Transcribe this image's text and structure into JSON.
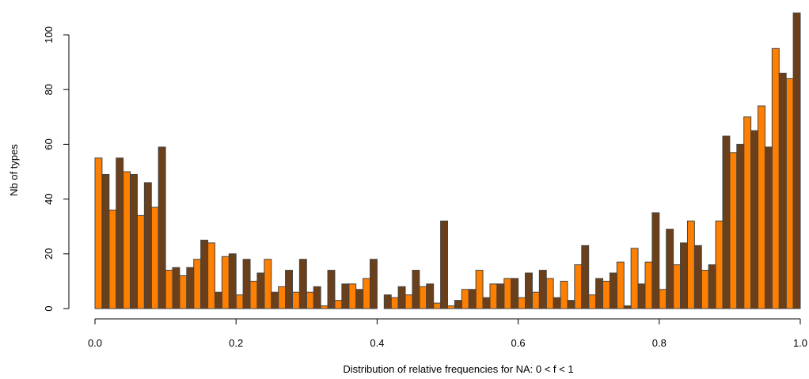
{
  "chart_data": {
    "type": "bar",
    "title": "",
    "xlabel": "Distribution of relative frequencies for NA: 0 < f < 1",
    "ylabel": "Nb of types",
    "xlim": [
      0,
      1
    ],
    "ylim": [
      0,
      108
    ],
    "x_ticks": [
      0.0,
      0.2,
      0.4,
      0.6,
      0.8,
      1.0
    ],
    "x_tick_labels": [
      "0.0",
      "0.2",
      "0.4",
      "0.6",
      "0.8",
      "1.0"
    ],
    "y_ticks": [
      0,
      20,
      40,
      60,
      80,
      100
    ],
    "y_tick_labels": [
      "0",
      "20",
      "40",
      "60",
      "80",
      "100"
    ],
    "grid": false,
    "colors": {
      "series_a": "#ff8000",
      "series_b": "#6b3f1a"
    },
    "bin_width": 0.02,
    "x": [
      0.0,
      0.02,
      0.04,
      0.06,
      0.08,
      0.1,
      0.12,
      0.14,
      0.16,
      0.18,
      0.2,
      0.22,
      0.24,
      0.26,
      0.28,
      0.3,
      0.32,
      0.34,
      0.36,
      0.38,
      0.4,
      0.42,
      0.44,
      0.46,
      0.48,
      0.5,
      0.52,
      0.54,
      0.56,
      0.58,
      0.6,
      0.62,
      0.64,
      0.66,
      0.68,
      0.7,
      0.72,
      0.74,
      0.76,
      0.78,
      0.8,
      0.82,
      0.84,
      0.86,
      0.88,
      0.9,
      0.92,
      0.94,
      0.96,
      0.98
    ],
    "series": [
      {
        "values": [
          55,
          36,
          50,
          34,
          37,
          14,
          12,
          18,
          24,
          19,
          5,
          10,
          18,
          8,
          6,
          6,
          1,
          3,
          9,
          11,
          0,
          4,
          5,
          8,
          2,
          1,
          7,
          14,
          9,
          11,
          4,
          6,
          11,
          10,
          16,
          5,
          10,
          17,
          22,
          17,
          7,
          16,
          32,
          14,
          32,
          57,
          70,
          74,
          95,
          84
        ]
      },
      {
        "values": [
          49,
          55,
          49,
          46,
          59,
          15,
          15,
          25,
          6,
          20,
          18,
          13,
          6,
          14,
          18,
          8,
          14,
          9,
          7,
          18,
          5,
          8,
          14,
          9,
          32,
          3,
          7,
          4,
          9,
          11,
          13,
          14,
          4,
          3,
          23,
          11,
          13,
          1,
          9,
          35,
          29,
          24,
          23,
          16,
          63,
          60,
          65,
          59,
          86,
          108
        ]
      }
    ]
  }
}
